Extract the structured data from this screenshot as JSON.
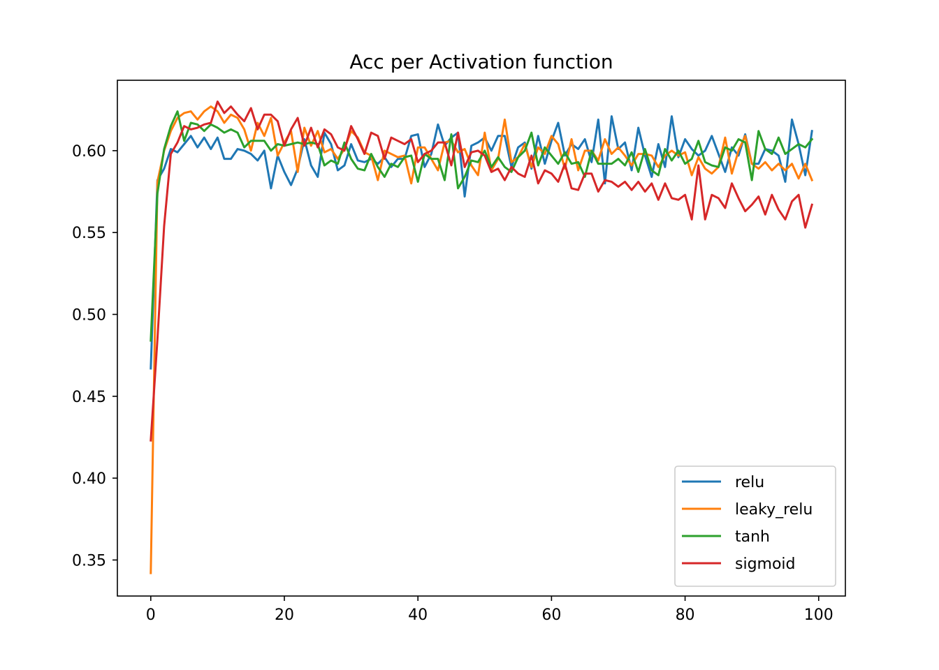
{
  "chart_data": {
    "type": "line",
    "title": "Acc per Activation function",
    "xlabel": "",
    "ylabel": "",
    "xlim": [
      -5,
      104
    ],
    "ylim": [
      0.328,
      0.643
    ],
    "x_ticks": [
      0,
      20,
      40,
      60,
      80,
      100
    ],
    "x_tick_labels": [
      "0",
      "20",
      "40",
      "60",
      "80",
      "100"
    ],
    "y_ticks": [
      0.35,
      0.4,
      0.45,
      0.5,
      0.55,
      0.6
    ],
    "y_tick_labels": [
      "0.35",
      "0.40",
      "0.45",
      "0.50",
      "0.55",
      "0.60"
    ],
    "grid": false,
    "legend_position": "lower-right",
    "x": [
      0,
      1,
      2,
      3,
      4,
      5,
      6,
      7,
      8,
      9,
      10,
      11,
      12,
      13,
      14,
      15,
      16,
      17,
      18,
      19,
      20,
      21,
      22,
      23,
      24,
      25,
      26,
      27,
      28,
      29,
      30,
      31,
      32,
      33,
      34,
      35,
      36,
      37,
      38,
      39,
      40,
      41,
      42,
      43,
      44,
      45,
      46,
      47,
      48,
      49,
      50,
      51,
      52,
      53,
      54,
      55,
      56,
      57,
      58,
      59,
      60,
      61,
      62,
      63,
      64,
      65,
      66,
      67,
      68,
      69,
      70,
      71,
      72,
      73,
      74,
      75,
      76,
      77,
      78,
      79,
      80,
      81,
      82,
      83,
      84,
      85,
      86,
      87,
      88,
      89,
      90,
      91,
      92,
      93,
      94,
      95,
      96,
      97,
      98,
      99
    ],
    "series": [
      {
        "name": "relu",
        "color": "#1f77b4",
        "values": [
          0.467,
          0.582,
          0.589,
          0.601,
          0.599,
          0.604,
          0.609,
          0.602,
          0.608,
          0.601,
          0.608,
          0.595,
          0.595,
          0.601,
          0.6,
          0.598,
          0.594,
          0.6,
          0.577,
          0.597,
          0.587,
          0.579,
          0.589,
          0.607,
          0.591,
          0.584,
          0.611,
          0.604,
          0.588,
          0.591,
          0.604,
          0.594,
          0.593,
          0.595,
          0.592,
          0.596,
          0.59,
          0.595,
          0.595,
          0.609,
          0.61,
          0.59,
          0.598,
          0.616,
          0.603,
          0.608,
          0.611,
          0.572,
          0.603,
          0.605,
          0.608,
          0.6,
          0.609,
          0.609,
          0.59,
          0.602,
          0.605,
          0.589,
          0.609,
          0.592,
          0.606,
          0.617,
          0.597,
          0.604,
          0.601,
          0.607,
          0.593,
          0.619,
          0.58,
          0.621,
          0.601,
          0.605,
          0.588,
          0.614,
          0.597,
          0.584,
          0.604,
          0.59,
          0.621,
          0.596,
          0.607,
          0.601,
          0.597,
          0.6,
          0.609,
          0.598,
          0.587,
          0.602,
          0.597,
          0.61,
          0.592,
          0.592,
          0.601,
          0.6,
          0.597,
          0.581,
          0.619,
          0.604,
          0.585,
          0.612
        ]
      },
      {
        "name": "leaky_relu",
        "color": "#ff7f0e",
        "values": [
          0.342,
          0.581,
          0.6,
          0.612,
          0.62,
          0.623,
          0.624,
          0.619,
          0.624,
          0.627,
          0.624,
          0.617,
          0.622,
          0.62,
          0.613,
          0.6,
          0.617,
          0.609,
          0.62,
          0.597,
          0.605,
          0.612,
          0.587,
          0.614,
          0.603,
          0.612,
          0.599,
          0.601,
          0.595,
          0.601,
          0.612,
          0.608,
          0.599,
          0.597,
          0.582,
          0.6,
          0.598,
          0.596,
          0.597,
          0.58,
          0.602,
          0.602,
          0.595,
          0.588,
          0.605,
          0.606,
          0.599,
          0.601,
          0.591,
          0.585,
          0.611,
          0.588,
          0.595,
          0.619,
          0.593,
          0.596,
          0.604,
          0.59,
          0.602,
          0.598,
          0.609,
          0.604,
          0.589,
          0.607,
          0.588,
          0.6,
          0.6,
          0.594,
          0.607,
          0.598,
          0.602,
          0.597,
          0.591,
          0.598,
          0.598,
          0.597,
          0.59,
          0.597,
          0.6,
          0.597,
          0.599,
          0.585,
          0.596,
          0.589,
          0.586,
          0.59,
          0.608,
          0.586,
          0.6,
          0.609,
          0.592,
          0.589,
          0.593,
          0.588,
          0.592,
          0.588,
          0.592,
          0.583,
          0.592,
          0.582
        ]
      },
      {
        "name": "tanh",
        "color": "#2ca02c",
        "values": [
          0.484,
          0.574,
          0.601,
          0.615,
          0.624,
          0.606,
          0.617,
          0.616,
          0.612,
          0.616,
          0.614,
          0.611,
          0.613,
          0.611,
          0.602,
          0.606,
          0.606,
          0.606,
          0.6,
          0.604,
          0.603,
          0.604,
          0.605,
          0.604,
          0.605,
          0.604,
          0.591,
          0.594,
          0.592,
          0.605,
          0.595,
          0.589,
          0.588,
          0.598,
          0.59,
          0.584,
          0.592,
          0.59,
          0.596,
          0.597,
          0.581,
          0.598,
          0.595,
          0.595,
          0.582,
          0.61,
          0.577,
          0.584,
          0.594,
          0.593,
          0.6,
          0.59,
          0.596,
          0.59,
          0.587,
          0.596,
          0.6,
          0.611,
          0.591,
          0.602,
          0.597,
          0.592,
          0.599,
          0.592,
          0.593,
          0.584,
          0.6,
          0.592,
          0.592,
          0.592,
          0.595,
          0.591,
          0.599,
          0.587,
          0.601,
          0.588,
          0.585,
          0.601,
          0.594,
          0.6,
          0.592,
          0.595,
          0.606,
          0.593,
          0.591,
          0.59,
          0.602,
          0.6,
          0.607,
          0.605,
          0.582,
          0.612,
          0.601,
          0.598,
          0.608,
          0.598,
          0.601,
          0.604,
          0.602,
          0.607
        ]
      },
      {
        "name": "sigmoid",
        "color": "#d62728",
        "values": [
          0.423,
          0.485,
          0.554,
          0.598,
          0.605,
          0.615,
          0.613,
          0.614,
          0.616,
          0.617,
          0.63,
          0.623,
          0.627,
          0.622,
          0.618,
          0.626,
          0.613,
          0.622,
          0.622,
          0.618,
          0.603,
          0.613,
          0.62,
          0.603,
          0.614,
          0.602,
          0.613,
          0.61,
          0.602,
          0.6,
          0.615,
          0.607,
          0.598,
          0.611,
          0.609,
          0.595,
          0.608,
          0.606,
          0.604,
          0.607,
          0.593,
          0.598,
          0.6,
          0.605,
          0.605,
          0.591,
          0.611,
          0.59,
          0.599,
          0.6,
          0.597,
          0.587,
          0.589,
          0.582,
          0.59,
          0.586,
          0.584,
          0.597,
          0.58,
          0.588,
          0.586,
          0.581,
          0.592,
          0.577,
          0.576,
          0.586,
          0.586,
          0.575,
          0.582,
          0.581,
          0.578,
          0.581,
          0.576,
          0.581,
          0.575,
          0.58,
          0.57,
          0.58,
          0.571,
          0.57,
          0.573,
          0.558,
          0.591,
          0.558,
          0.573,
          0.571,
          0.565,
          0.58,
          0.571,
          0.563,
          0.567,
          0.572,
          0.561,
          0.573,
          0.564,
          0.558,
          0.569,
          0.573,
          0.553,
          0.567
        ]
      }
    ]
  }
}
